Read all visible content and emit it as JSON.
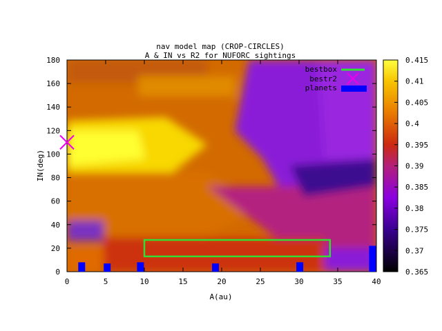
{
  "chart_data": {
    "type": "heatmap",
    "title_line1": "nav model map (CROP-CIRCLES)",
    "title_line2": "A & IN vs R2 for NUFORC sightings",
    "xlabel": "A(au)",
    "ylabel": "IN(deg)",
    "xlim": [
      0,
      40
    ],
    "ylim": [
      0,
      180
    ],
    "xticks": [
      0,
      5,
      10,
      15,
      20,
      25,
      30,
      35,
      40
    ],
    "yticks": [
      0,
      20,
      40,
      60,
      80,
      100,
      120,
      140,
      160,
      180
    ],
    "colorbar": {
      "min": 0.365,
      "max": 0.415,
      "ticks": [
        "0.365",
        "0.37",
        "0.375",
        "0.38",
        "0.385",
        "0.39",
        "0.395",
        "0.4",
        "0.405",
        "0.41",
        "0.415"
      ],
      "palette": "black-purple-red-orange-yellow"
    },
    "legend": [
      {
        "label": "bestbox",
        "color": "#33dd33"
      },
      {
        "label": "bestr2",
        "color": "#ee00ee"
      },
      {
        "label": "planets",
        "color": "#0000ff"
      }
    ],
    "bestbox": {
      "x": [
        10,
        34
      ],
      "y": [
        13,
        27
      ]
    },
    "bestr2": {
      "x": 0,
      "y": 110
    },
    "planets": [
      {
        "a": 1.9,
        "in": 8
      },
      {
        "a": 5.2,
        "in": 7
      },
      {
        "a": 9.5,
        "in": 8
      },
      {
        "a": 19.2,
        "in": 7
      },
      {
        "a": 30.1,
        "in": 8
      },
      {
        "a": 39.5,
        "in": 22
      }
    ]
  }
}
